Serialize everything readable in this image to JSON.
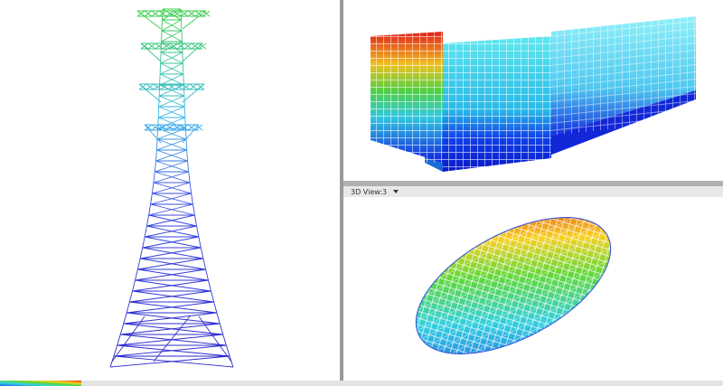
{
  "views": [
    {
      "label": "3D View:3"
    }
  ]
}
